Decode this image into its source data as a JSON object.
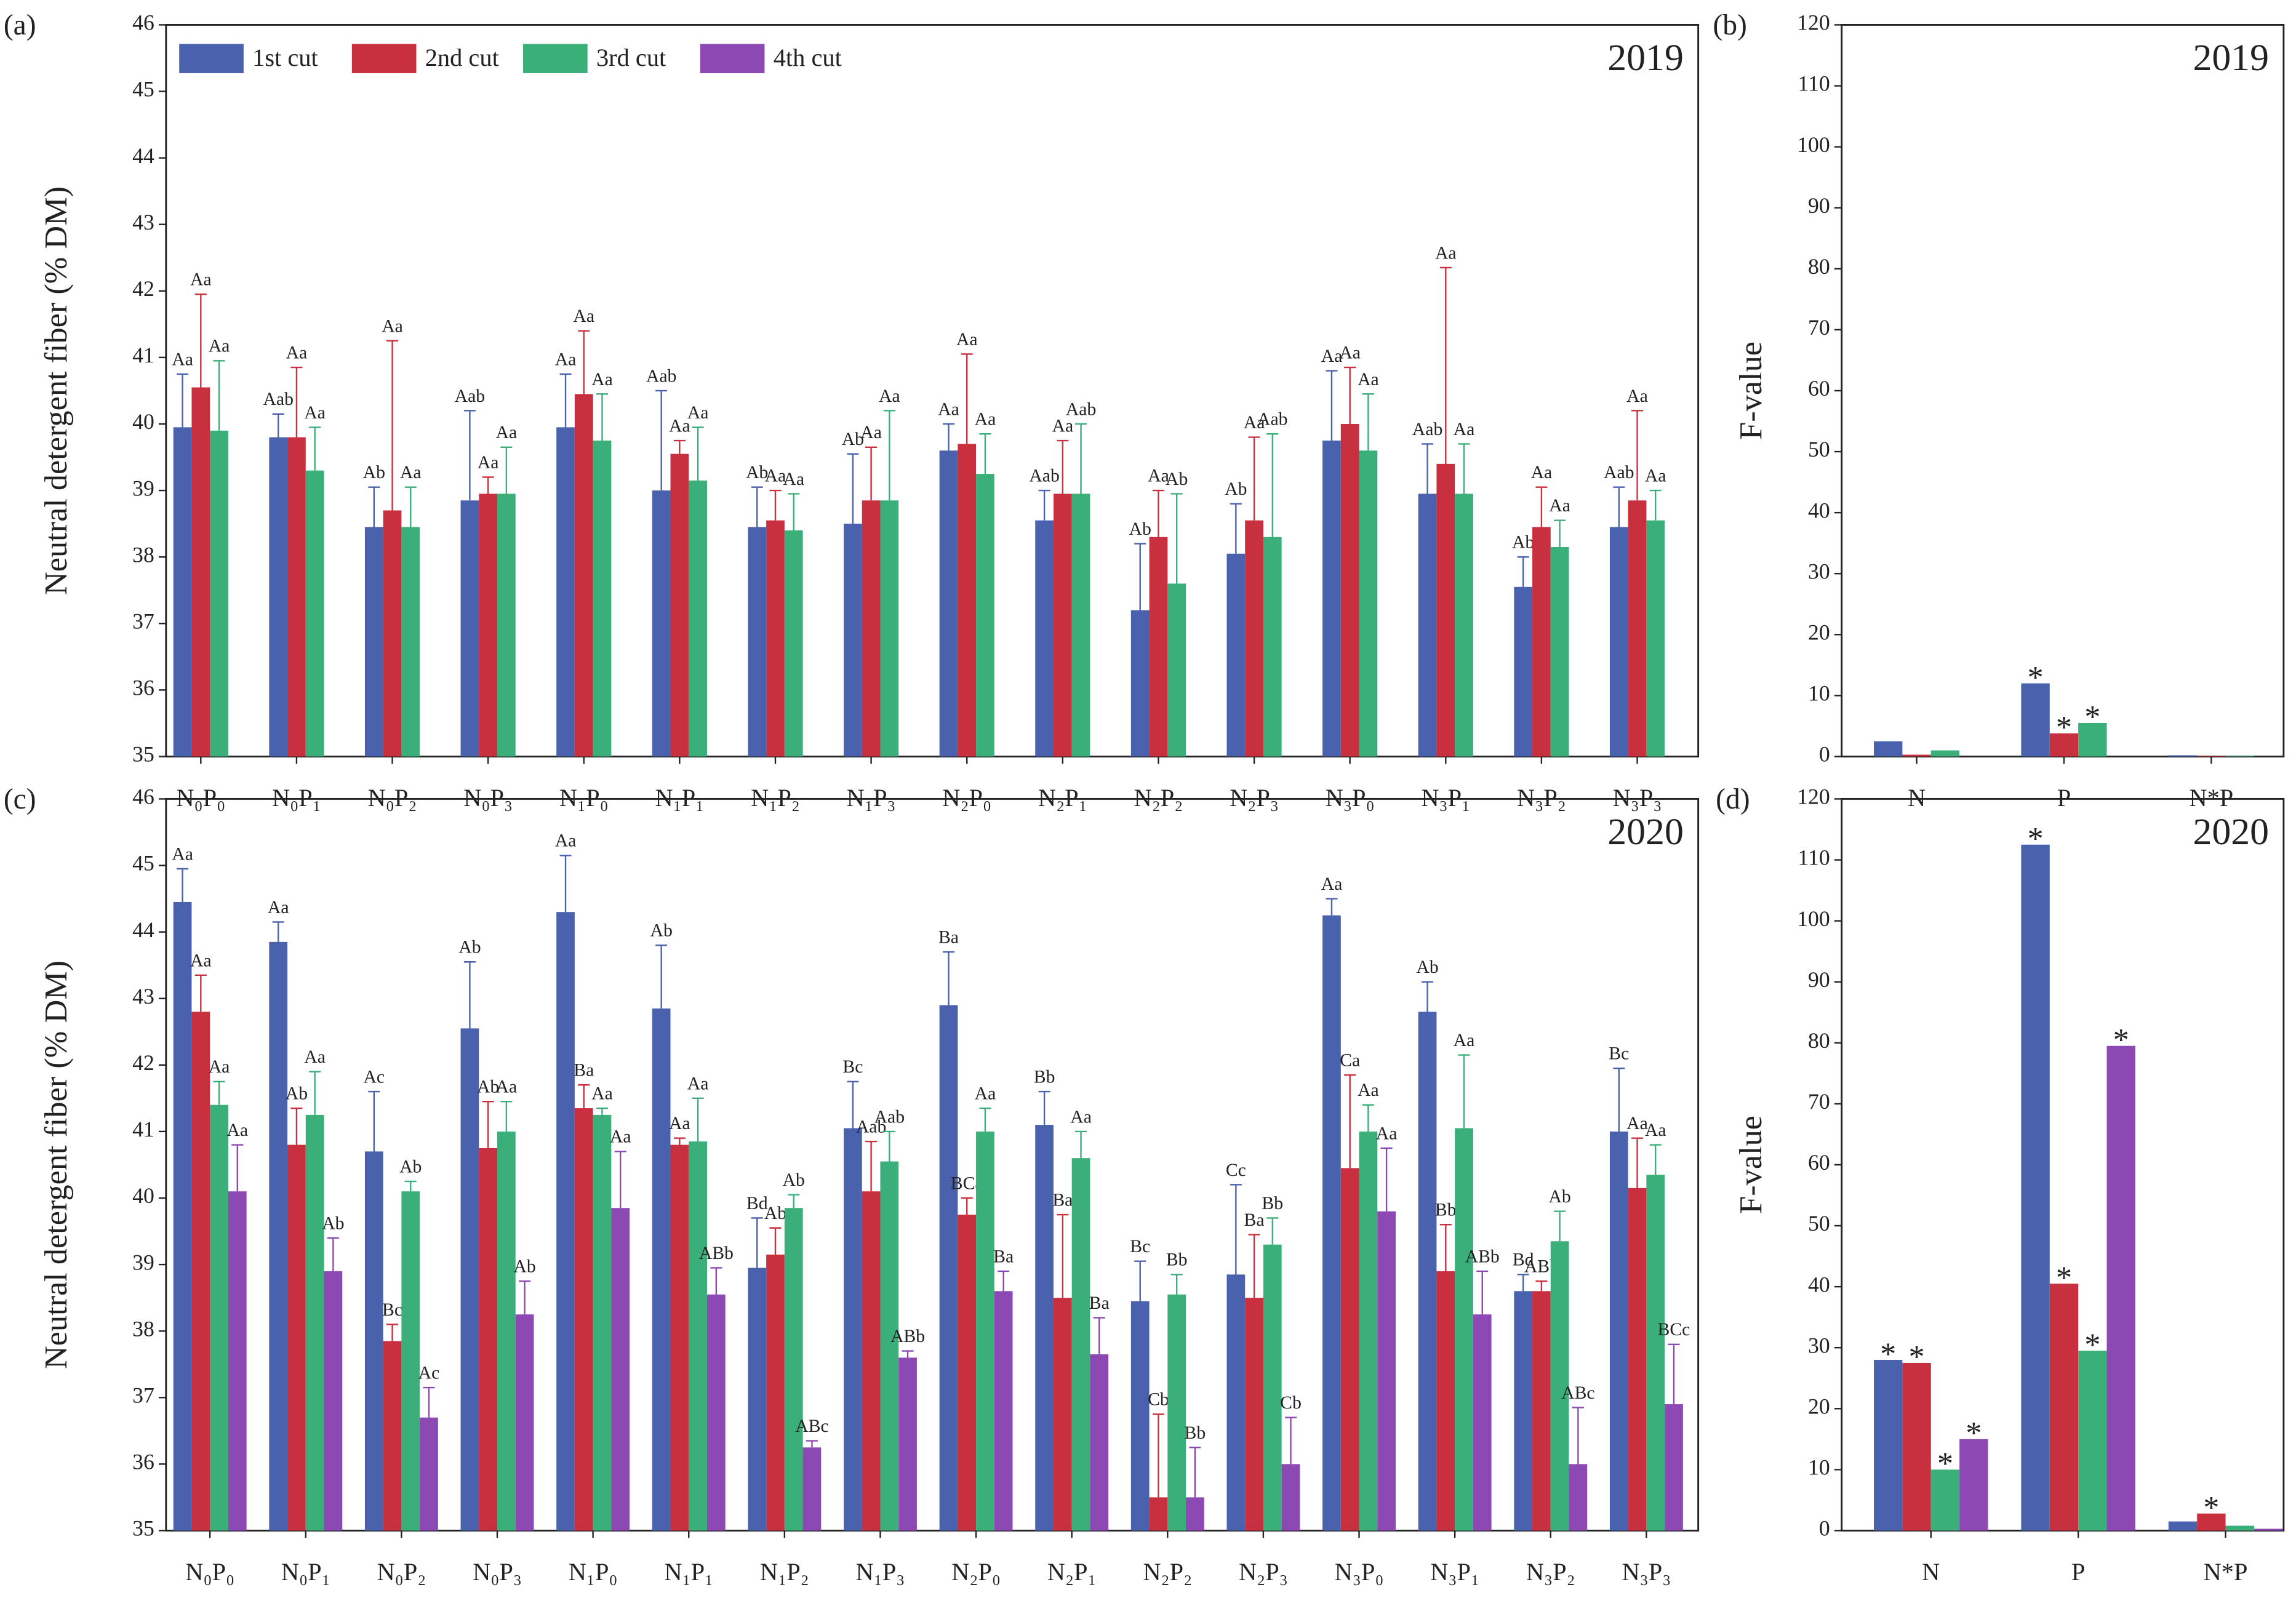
{
  "chart_data": [
    {
      "type": "bar",
      "panel_label": "(a)",
      "annotation": "2019",
      "y_label": "Neutral detergent fiber (% DM)",
      "legend": true,
      "legend_position": "upper left",
      "categories": [
        "N₀P₀",
        "N₀P₁",
        "N₀P₂",
        "N₀P₃",
        "N₁P₀",
        "N₁P₁",
        "N₁P₂",
        "N₁P₃",
        "N₂P₀",
        "N₂P₁",
        "N₂P₂",
        "N₂P₃",
        "N₃P₀",
        "N₃P₁",
        "N₃P₂",
        "N₃P₃"
      ],
      "ylim": [
        35,
        46
      ],
      "yticks": [
        35,
        36,
        37,
        38,
        39,
        40,
        41,
        42,
        43,
        44,
        45,
        46
      ],
      "series": [
        {
          "name": "1st cut",
          "color": "#4a62ad",
          "values": [
            39.95,
            39.8,
            38.45,
            38.85,
            39.95,
            39.0,
            38.45,
            38.5,
            39.6,
            38.55,
            37.2,
            38.05,
            39.75,
            38.95,
            37.55,
            38.45
          ],
          "errors": [
            0.8,
            0.35,
            0.6,
            1.35,
            0.8,
            1.5,
            0.6,
            1.05,
            0.4,
            0.45,
            1.0,
            0.75,
            1.05,
            0.75,
            0.45,
            0.6
          ],
          "letters": [
            "Aa",
            "Aab",
            "Ab",
            "Aab",
            "Aa",
            "Aab",
            "Ab",
            "Ab",
            "Aa",
            "Aab",
            "Ab",
            "Ab",
            "Aa",
            "Aab",
            "Ab",
            "Aab"
          ]
        },
        {
          "name": "2nd cut",
          "color": "#c8303f",
          "values": [
            40.55,
            39.8,
            38.7,
            38.95,
            40.45,
            39.55,
            38.55,
            38.85,
            39.7,
            38.95,
            38.3,
            38.55,
            40.0,
            39.4,
            38.45,
            38.85
          ],
          "errors": [
            1.4,
            1.05,
            2.55,
            0.25,
            0.95,
            0.2,
            0.45,
            0.8,
            1.35,
            0.8,
            0.7,
            1.25,
            0.85,
            2.95,
            0.6,
            1.35
          ],
          "letters": [
            "Aa",
            "Aa",
            "Aa",
            "Aa",
            "Aa",
            "Aa",
            "Aa",
            "Aa",
            "Aa",
            "Aa",
            "Aa",
            "Aa",
            "Aa",
            "Aa",
            "Aa",
            "Aa"
          ]
        },
        {
          "name": "3rd cut",
          "color": "#3aaf7a",
          "values": [
            39.9,
            39.3,
            38.45,
            38.95,
            39.75,
            39.15,
            38.4,
            38.85,
            39.25,
            38.95,
            37.6,
            38.3,
            39.6,
            38.95,
            38.15,
            38.55
          ],
          "errors": [
            1.05,
            0.65,
            0.6,
            0.7,
            0.7,
            0.8,
            0.55,
            1.35,
            0.6,
            1.05,
            1.35,
            1.55,
            0.85,
            0.75,
            0.4,
            0.45
          ],
          "letters": [
            "Aa",
            "Aa",
            "Aa",
            "Aa",
            "Aa",
            "Aa",
            "Aa",
            "Aa",
            "Aa",
            "Aab",
            "Ab",
            "Aab",
            "Aa",
            "Aa",
            "Aa",
            "Aa"
          ]
        },
        {
          "name": "4th cut",
          "color": "#8c49b3",
          "values": [
            null,
            null,
            null,
            null,
            null,
            null,
            null,
            null,
            null,
            null,
            null,
            null,
            null,
            null,
            null,
            null
          ]
        }
      ]
    },
    {
      "type": "bar",
      "panel_label": "(b)",
      "annotation": "2019",
      "y_label": "F-value",
      "categories": [
        "N",
        "P",
        "N*P"
      ],
      "ylim": [
        0,
        120
      ],
      "yticks": [
        0,
        10,
        20,
        30,
        40,
        50,
        60,
        70,
        80,
        90,
        100,
        110,
        120
      ],
      "series": [
        {
          "color": "#4a62ad",
          "values": [
            2.5,
            12.0,
            0.2
          ],
          "marks": [
            null,
            "*",
            null
          ]
        },
        {
          "color": "#c8303f",
          "values": [
            0.3,
            3.8,
            0.1
          ],
          "marks": [
            null,
            "*",
            null
          ]
        },
        {
          "color": "#3aaf7a",
          "values": [
            1.0,
            5.5,
            0.1
          ],
          "marks": [
            null,
            "*",
            null
          ]
        }
      ]
    },
    {
      "type": "bar",
      "panel_label": "(c)",
      "annotation": "2020",
      "y_label": "Neutral detergent fiber (% DM)",
      "categories": [
        "N₀P₀",
        "N₀P₁",
        "N₀P₂",
        "N₀P₃",
        "N₁P₀",
        "N₁P₁",
        "N₁P₂",
        "N₁P₃",
        "N₂P₀",
        "N₂P₁",
        "N₂P₂",
        "N₂P₃",
        "N₃P₀",
        "N₃P₁",
        "N₃P₂",
        "N₃P₃"
      ],
      "ylim": [
        35,
        46
      ],
      "yticks": [
        35,
        36,
        37,
        38,
        39,
        40,
        41,
        42,
        43,
        44,
        45,
        46
      ],
      "series": [
        {
          "color": "#4a62ad",
          "values": [
            44.45,
            43.85,
            40.7,
            42.55,
            44.3,
            42.85,
            38.95,
            41.05,
            42.9,
            41.1,
            38.45,
            38.85,
            44.25,
            42.8,
            38.6,
            41.0
          ],
          "errors": [
            0.5,
            0.3,
            0.9,
            1.0,
            0.85,
            0.95,
            0.75,
            0.7,
            0.8,
            0.5,
            0.6,
            1.35,
            0.25,
            0.45,
            0.25,
            0.95
          ],
          "letters": [
            "Aa",
            "Aa",
            "Ac",
            "Ab",
            "Aa",
            "Ab",
            "Bd",
            "Bc",
            "Ba",
            "Bb",
            "Bc",
            "Cc",
            "Aa",
            "Ab",
            "Bd",
            "Bc"
          ]
        },
        {
          "color": "#c8303f",
          "values": [
            42.8,
            40.8,
            37.85,
            40.75,
            41.35,
            40.8,
            39.15,
            40.1,
            39.75,
            38.5,
            35.5,
            38.5,
            40.45,
            38.9,
            38.6,
            40.15
          ],
          "errors": [
            0.55,
            0.55,
            0.25,
            0.7,
            0.35,
            0.1,
            0.4,
            0.75,
            0.25,
            1.25,
            1.25,
            0.95,
            1.4,
            0.7,
            0.15,
            0.75
          ],
          "letters": [
            "Aa",
            "Ab",
            "Bc",
            "Ab",
            "Ba",
            "Aa",
            "Ab",
            "Aab",
            "BCa",
            "Ba",
            "Cb",
            "Ba",
            "Ca",
            "Bb",
            "ABb",
            "Aa"
          ]
        },
        {
          "color": "#3aaf7a",
          "values": [
            41.4,
            41.25,
            40.1,
            41.0,
            41.25,
            40.85,
            39.85,
            40.55,
            41.0,
            40.6,
            38.55,
            39.3,
            41.0,
            41.05,
            39.35,
            40.35
          ],
          "errors": [
            0.35,
            0.65,
            0.15,
            0.45,
            0.1,
            0.65,
            0.2,
            0.45,
            0.35,
            0.4,
            0.3,
            0.4,
            0.4,
            1.1,
            0.45,
            0.45
          ],
          "letters": [
            "Aa",
            "Aa",
            "Ab",
            "Aa",
            "Aa",
            "Aa",
            "Ab",
            "Aab",
            "Aa",
            "Aa",
            "Bb",
            "Bb",
            "Aa",
            "Aa",
            "Ab",
            "Aa"
          ]
        },
        {
          "color": "#8c49b3",
          "values": [
            40.1,
            38.9,
            36.7,
            38.25,
            39.85,
            38.55,
            36.25,
            37.6,
            38.6,
            37.65,
            35.5,
            36.0,
            39.8,
            38.25,
            36.0,
            36.9
          ],
          "errors": [
            0.7,
            0.5,
            0.45,
            0.5,
            0.85,
            0.4,
            0.1,
            0.1,
            0.3,
            0.55,
            0.75,
            0.7,
            0.95,
            0.65,
            0.85,
            0.9
          ],
          "letters": [
            "Aa",
            "Ab",
            "Ac",
            "Ab",
            "Aa",
            "ABb",
            "ABc",
            "ABb",
            "Ba",
            "Ba",
            "Bb",
            "Cb",
            "Aa",
            "ABb",
            "ABc",
            "BCc"
          ]
        }
      ]
    },
    {
      "type": "bar",
      "panel_label": "(d)",
      "annotation": "2020",
      "y_label": "F-value",
      "categories": [
        "N",
        "P",
        "N*P"
      ],
      "ylim": [
        0,
        120
      ],
      "yticks": [
        0,
        10,
        20,
        30,
        40,
        50,
        60,
        70,
        80,
        90,
        100,
        110,
        120
      ],
      "series": [
        {
          "color": "#4a62ad",
          "values": [
            28.0,
            112.5,
            1.5
          ],
          "marks": [
            "*",
            "*",
            null
          ]
        },
        {
          "color": "#c8303f",
          "values": [
            27.5,
            40.5,
            2.8
          ],
          "marks": [
            "*",
            "*",
            "*"
          ]
        },
        {
          "color": "#3aaf7a",
          "values": [
            10.0,
            29.5,
            0.8
          ],
          "marks": [
            "*",
            "*",
            null
          ]
        },
        {
          "color": "#8c49b3",
          "values": [
            15.0,
            79.5,
            0.3
          ],
          "marks": [
            "*",
            "*",
            null
          ]
        }
      ]
    }
  ]
}
